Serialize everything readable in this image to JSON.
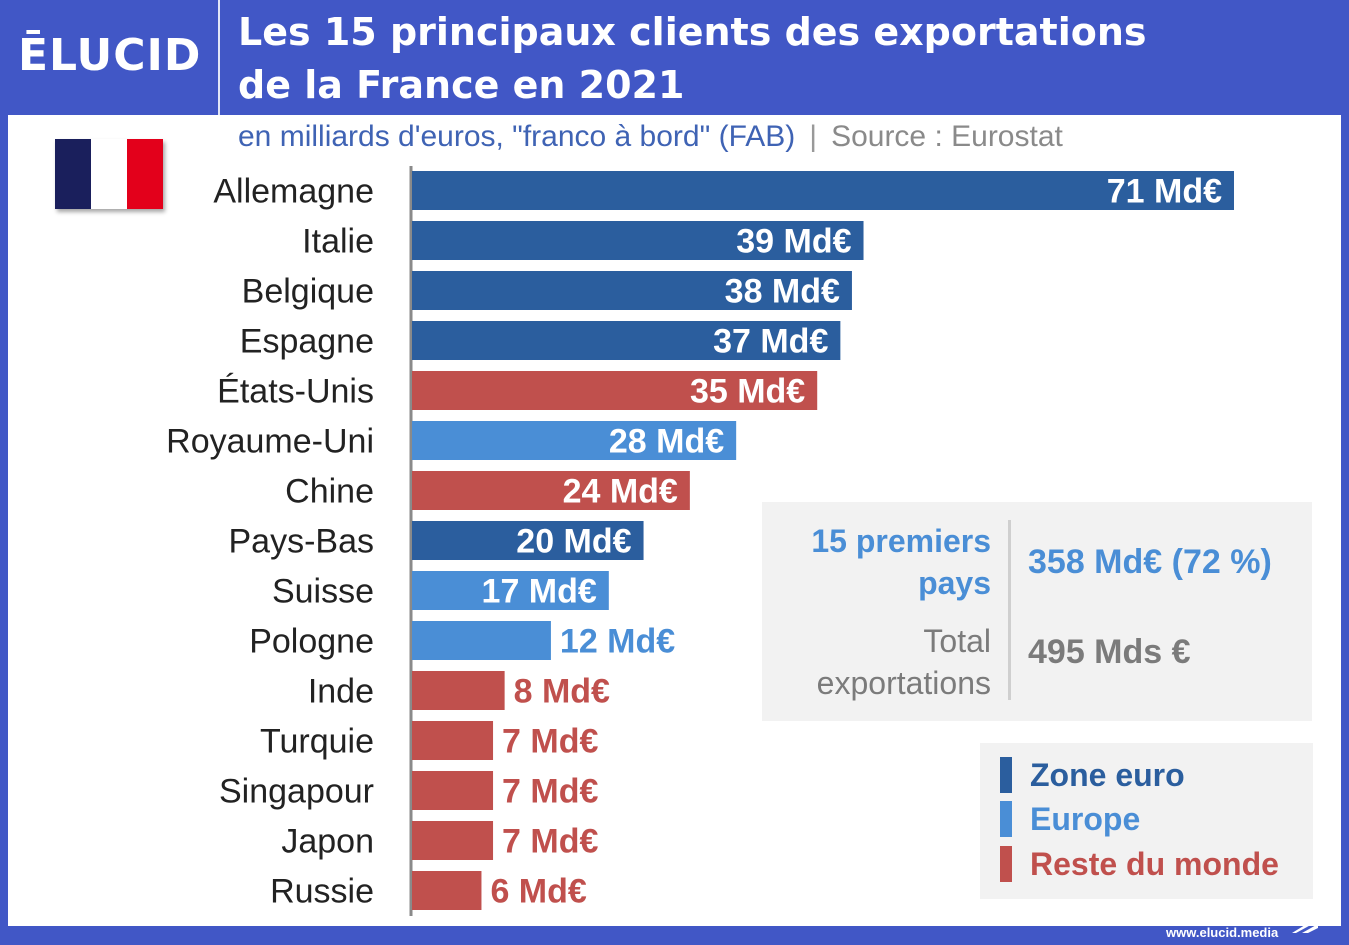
{
  "header": {
    "logo": "ĒLUCID",
    "title_line1": "Les 15 principaux clients des exportations",
    "title_line2": "de la France en 2021"
  },
  "subtitle": {
    "units": "en milliards d'euros, \"franco à bord\" (FAB)",
    "separator": "|",
    "source": "Source : Eurostat"
  },
  "flag_icon": "france-flag-icon",
  "colors": {
    "zone_euro": "#2b5e9e",
    "europe": "#4a8ed6",
    "reste_du_monde": "#c0504d",
    "axis": "#8a8a8a"
  },
  "chart_data": {
    "type": "bar",
    "orientation": "horizontal",
    "categories": [
      "Allemagne",
      "Italie",
      "Belgique",
      "Espagne",
      "États-Unis",
      "Royaume-Uni",
      "Chine",
      "Pays-Bas",
      "Suisse",
      "Pologne",
      "Inde",
      "Turquie",
      "Singapour",
      "Japon",
      "Russie"
    ],
    "values": [
      71,
      39,
      38,
      37,
      35,
      28,
      24,
      20,
      17,
      12,
      8,
      7,
      7,
      7,
      6
    ],
    "labels": [
      "71 Md€",
      "39 Md€",
      "38 Md€",
      "37 Md€",
      "35 Md€",
      "28 Md€",
      "24 Md€",
      "20 Md€",
      "17 Md€",
      "12 Md€",
      "8 Md€",
      "7 Md€",
      "7 Md€",
      "7 Md€",
      "6 Md€"
    ],
    "groups": [
      "zone_euro",
      "zone_euro",
      "zone_euro",
      "zone_euro",
      "reste_du_monde",
      "europe",
      "reste_du_monde",
      "zone_euro",
      "europe",
      "europe",
      "reste_du_monde",
      "reste_du_monde",
      "reste_du_monde",
      "reste_du_monde",
      "reste_du_monde"
    ],
    "title": "Les 15 principaux clients des exportations de la France en 2021",
    "xlabel": "",
    "ylabel": "",
    "xlim": [
      0,
      71
    ],
    "grid": false,
    "legend": "bottom-right"
  },
  "summary": {
    "top15_label": "15 premiers pays",
    "top15_value": "358 Md€ (72 %)",
    "total_label": "Total exportations",
    "total_value": "495 Mds €"
  },
  "legend": {
    "items": [
      {
        "key": "zone_euro",
        "label": "Zone euro"
      },
      {
        "key": "europe",
        "label": "Europe"
      },
      {
        "key": "reste_du_monde",
        "label": "Reste du monde"
      }
    ]
  },
  "footer": {
    "url": "www.elucid.media"
  }
}
